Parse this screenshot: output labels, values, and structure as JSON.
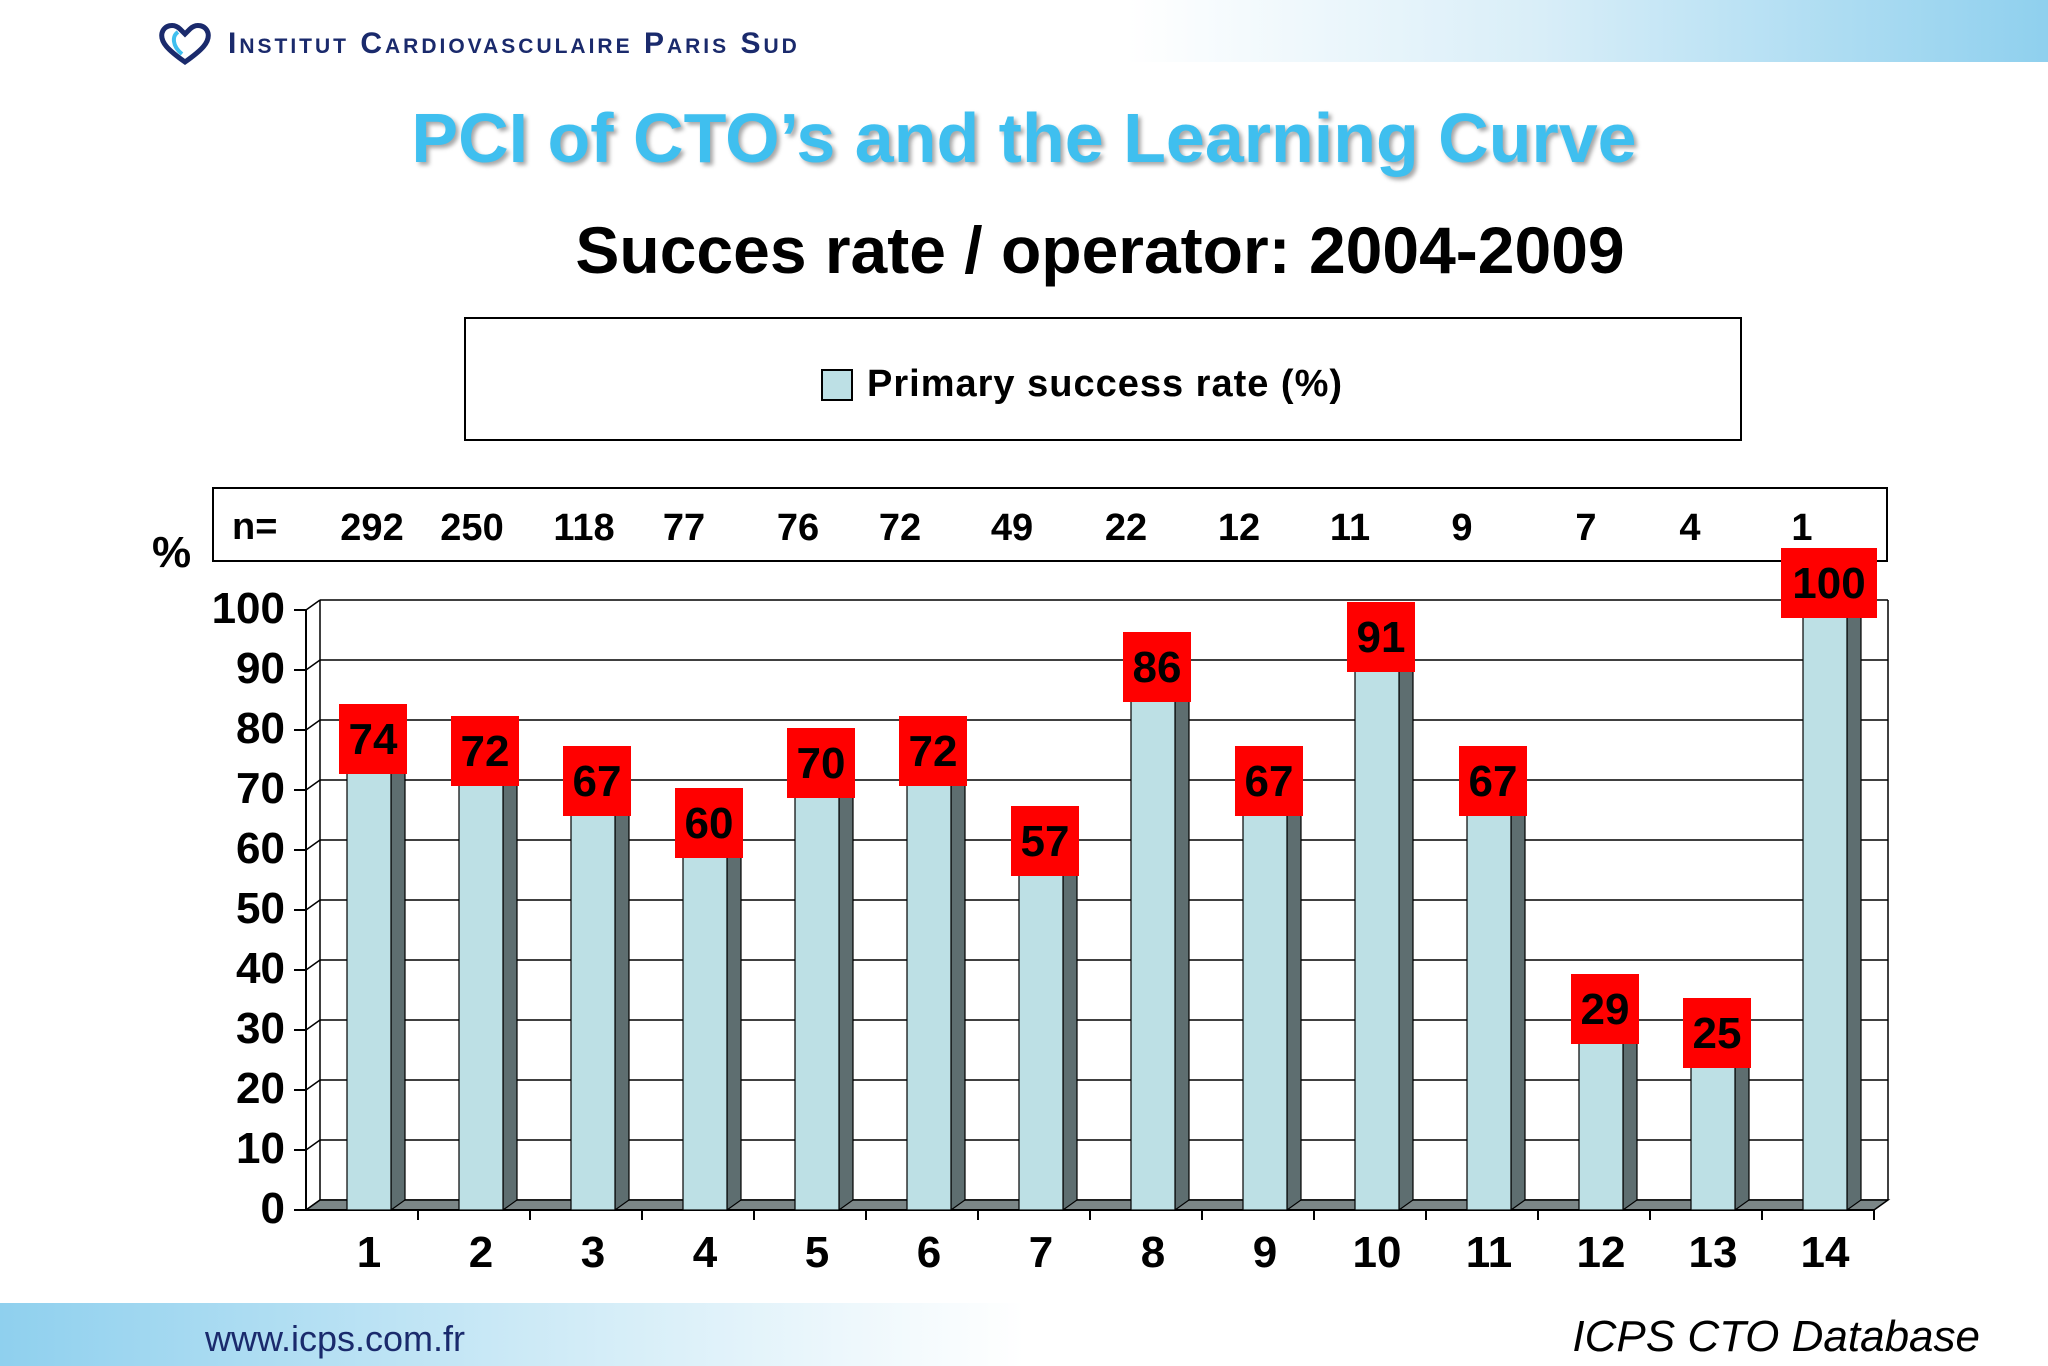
{
  "header": {
    "logo_text": "Institut Cardiovasculaire Paris Sud"
  },
  "title": "PCI of CTO’s and the Learning Curve",
  "subtitle": "Succes rate / operator: 2004-2009",
  "footer": {
    "url": "www.icps.com.fr",
    "source": "ICPS CTO Database"
  },
  "colors": {
    "bar": "#bde0e5",
    "bar_side": "#5e6e70",
    "label_bg": "#ff0000",
    "title": "#3fbfef"
  },
  "chart_data": {
    "type": "bar",
    "categories": [
      "1",
      "2",
      "3",
      "4",
      "5",
      "6",
      "7",
      "8",
      "9",
      "10",
      "11",
      "12",
      "13",
      "14"
    ],
    "series": [
      {
        "name": "Primary success rate (%)",
        "values": [
          74,
          72,
          67,
          60,
          70,
          72,
          57,
          86,
          67,
          91,
          67,
          29,
          25,
          100
        ]
      }
    ],
    "n_label": "n=",
    "n_values": [
      "292",
      "250",
      "118",
      "77",
      "76",
      "72",
      "49",
      "22",
      "12",
      "11",
      "9",
      "7",
      "4",
      "1"
    ],
    "ylabel": "%",
    "ylim": [
      0,
      100
    ],
    "yticks": [
      "0",
      "10",
      "20",
      "30",
      "40",
      "50",
      "60",
      "70",
      "80",
      "90",
      "100"
    ],
    "grid": true,
    "legend_position": "top"
  }
}
